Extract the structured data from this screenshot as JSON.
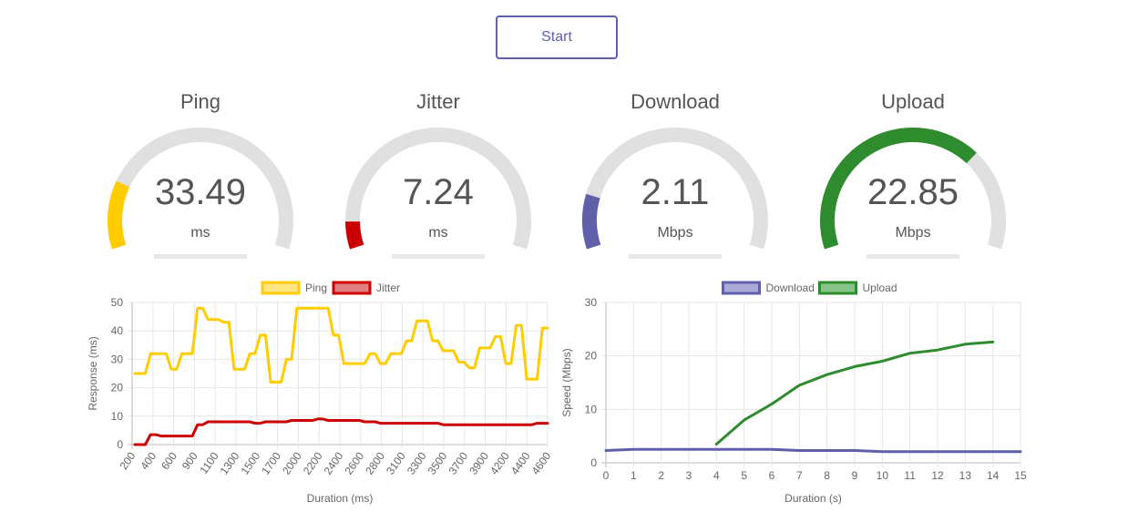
{
  "start_button": {
    "label": "Start",
    "color": "#6060b0"
  },
  "gauges": [
    {
      "title": "Ping",
      "value": "33.49",
      "unit": "ms",
      "fill_fraction": 0.2,
      "color": "#ffcc00"
    },
    {
      "title": "Jitter",
      "value": "7.24",
      "unit": "ms",
      "fill_fraction": 0.08,
      "color": "#cc0000"
    },
    {
      "title": "Download",
      "value": "2.11",
      "unit": "Mbps",
      "fill_fraction": 0.16,
      "color": "#6060aa"
    },
    {
      "title": "Upload",
      "value": "22.85",
      "unit": "Mbps",
      "fill_fraction": 0.7,
      "color": "#2e8b2e"
    }
  ],
  "chart_data": [
    {
      "type": "line",
      "xlabel": "Duration (ms)",
      "ylabel": "Response (ms)",
      "ylim": [
        0,
        50
      ],
      "yticks": [
        "0",
        "10",
        "20",
        "30",
        "40",
        "50"
      ],
      "xticks": [
        "200",
        "400",
        "600",
        "900",
        "1100",
        "1300",
        "1500",
        "1700",
        "2000",
        "2200",
        "2400",
        "2600",
        "2800",
        "3100",
        "3300",
        "3500",
        "3700",
        "3900",
        "4200",
        "4400",
        "4600"
      ],
      "legend_position": "top",
      "grid": true,
      "series": [
        {
          "name": "Ping",
          "color": "#ffcc00",
          "fill": "#ffe680",
          "values": [
            25,
            25,
            25,
            32,
            32,
            32,
            32,
            26.5,
            26.5,
            32,
            32,
            32,
            48,
            48,
            44,
            44,
            44,
            43,
            43,
            26.5,
            26.5,
            26.5,
            32,
            32,
            38.5,
            38.5,
            22,
            22,
            22,
            30,
            30,
            48,
            48,
            48,
            48,
            48,
            48,
            48,
            38.5,
            38.5,
            28.5,
            28.5,
            28.5,
            28.5,
            28.5,
            32,
            32,
            28.5,
            28.5,
            32,
            32,
            32,
            36.5,
            36.5,
            43.5,
            43.5,
            43.5,
            36.5,
            36.5,
            33,
            33,
            33,
            29,
            29,
            27,
            27,
            34,
            34,
            34,
            38,
            38,
            28.5,
            28.5,
            42,
            42,
            23,
            23,
            23,
            41,
            41
          ]
        },
        {
          "name": "Jitter",
          "color": "#cc0000",
          "fill": "#e08080",
          "values": [
            0,
            0,
            0,
            3.5,
            3.5,
            3,
            3,
            3,
            3,
            3,
            3,
            3,
            7,
            7,
            8,
            8,
            8,
            8,
            8,
            8,
            8,
            8,
            8,
            7.5,
            7.5,
            8,
            8,
            8,
            8,
            8,
            8.5,
            8.5,
            8.5,
            8.5,
            8.5,
            9,
            9,
            8.5,
            8.5,
            8.5,
            8.5,
            8.5,
            8.5,
            8.5,
            8,
            8,
            8,
            7.5,
            7.5,
            7.5,
            7.5,
            7.5,
            7.5,
            7.5,
            7.5,
            7.5,
            7.5,
            7.5,
            7.5,
            7,
            7,
            7,
            7,
            7,
            7,
            7,
            7,
            7,
            7,
            7,
            7,
            7,
            7,
            7,
            7,
            7,
            7,
            7.5,
            7.5,
            7.5
          ]
        }
      ]
    },
    {
      "type": "line",
      "xlabel": "Duration (s)",
      "ylabel": "Speed (Mbps)",
      "xlim": [
        0,
        15
      ],
      "ylim": [
        0,
        30
      ],
      "yticks": [
        "0",
        "10",
        "20",
        "30"
      ],
      "xticks": [
        "0",
        "1",
        "2",
        "3",
        "4",
        "5",
        "6",
        "7",
        "8",
        "9",
        "10",
        "11",
        "12",
        "13",
        "14",
        "15"
      ],
      "legend_position": "top",
      "grid": true,
      "series": [
        {
          "name": "Download",
          "color": "#6060aa",
          "fill": "#aaaad6",
          "points": [
            [
              0,
              2.3
            ],
            [
              1,
              2.5
            ],
            [
              2,
              2.5
            ],
            [
              3,
              2.5
            ],
            [
              4,
              2.5
            ],
            [
              5,
              2.5
            ],
            [
              6,
              2.5
            ],
            [
              7,
              2.3
            ],
            [
              8,
              2.3
            ],
            [
              9,
              2.3
            ],
            [
              10,
              2.1
            ],
            [
              11,
              2.1
            ],
            [
              12,
              2.1
            ],
            [
              13,
              2.1
            ],
            [
              14,
              2.1
            ],
            [
              15,
              2.1
            ]
          ]
        },
        {
          "name": "Upload",
          "color": "#2e8b2e",
          "fill": "#88c488",
          "points": [
            [
              4,
              3.5
            ],
            [
              5,
              8
            ],
            [
              6,
              11
            ],
            [
              7,
              14.5
            ],
            [
              8,
              16.5
            ],
            [
              9,
              18
            ],
            [
              10,
              19
            ],
            [
              11,
              20.5
            ],
            [
              12,
              21.1
            ],
            [
              13,
              22.2
            ],
            [
              14,
              22.6
            ]
          ]
        }
      ]
    }
  ]
}
